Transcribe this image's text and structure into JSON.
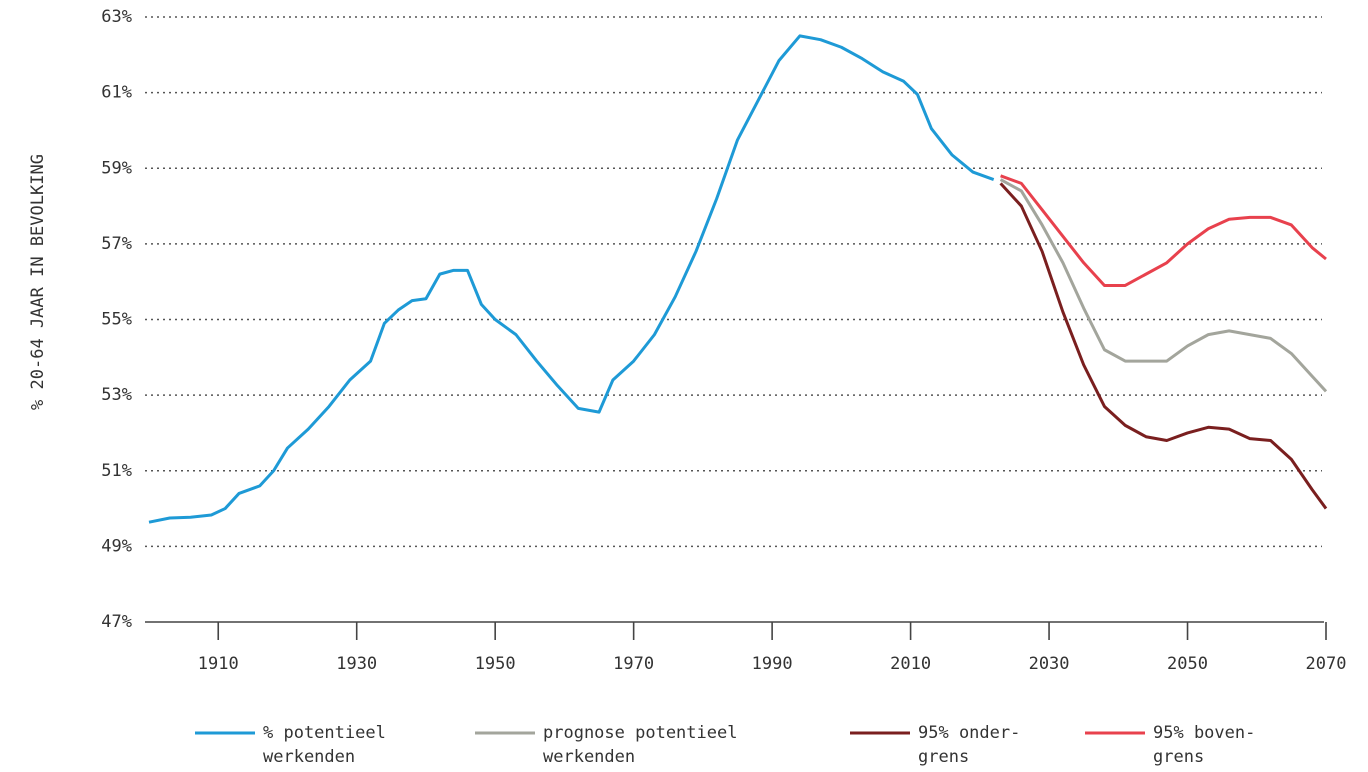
{
  "chart_data": {
    "type": "line",
    "y_label": "% 20-64 JAAR IN BEVOLKING",
    "xlim": [
      1900,
      2070
    ],
    "xticks": [
      1910,
      1930,
      1950,
      1970,
      1990,
      2010,
      2030,
      2050,
      2070
    ],
    "ylim": [
      47,
      63
    ],
    "yticks": [
      {
        "value": 47,
        "label": "47%"
      },
      {
        "value": 49,
        "label": "49%"
      },
      {
        "value": 51,
        "label": "51%"
      },
      {
        "value": 53,
        "label": "53%"
      },
      {
        "value": 55,
        "label": "55%"
      },
      {
        "value": 57,
        "label": "57%"
      },
      {
        "value": 59,
        "label": "59%"
      },
      {
        "value": 61,
        "label": "61%"
      },
      {
        "value": 63,
        "label": "63%"
      }
    ],
    "grid": true,
    "legend": "bottom",
    "series": [
      {
        "name": "% potentieel\nwerkenden",
        "color": "#1e9ad6",
        "x": [
          1900,
          1903,
          1906,
          1909,
          1911,
          1913,
          1916,
          1918,
          1920,
          1923,
          1926,
          1929,
          1932,
          1934,
          1936,
          1938,
          1940,
          1942,
          1944,
          1946,
          1948,
          1950,
          1953,
          1956,
          1959,
          1962,
          1965,
          1967,
          1970,
          1973,
          1976,
          1979,
          1982,
          1985,
          1988,
          1991,
          1994,
          1997,
          2000,
          2003,
          2006,
          2009,
          2011,
          2013,
          2016,
          2019,
          2022
        ],
        "values": [
          49.64,
          49.75,
          49.77,
          49.83,
          50.0,
          50.4,
          50.6,
          51.0,
          51.6,
          52.1,
          52.7,
          53.4,
          53.9,
          54.9,
          55.25,
          55.5,
          55.55,
          56.2,
          56.3,
          56.3,
          55.4,
          55.0,
          54.6,
          53.9,
          53.25,
          52.65,
          52.55,
          53.4,
          53.9,
          54.6,
          55.6,
          56.8,
          58.2,
          59.75,
          60.8,
          61.85,
          62.5,
          62.4,
          62.2,
          61.9,
          61.55,
          61.3,
          60.95,
          60.05,
          59.35,
          58.9,
          58.7
        ]
      },
      {
        "name": "prognose potentieel\nwerkenden",
        "color": "#a3a59c",
        "x": [
          2023,
          2026,
          2029,
          2032,
          2035,
          2038,
          2041,
          2044,
          2047,
          2050,
          2053,
          2056,
          2059,
          2062,
          2065,
          2068,
          2070
        ],
        "values": [
          58.7,
          58.4,
          57.5,
          56.5,
          55.3,
          54.2,
          53.9,
          53.9,
          53.9,
          54.3,
          54.6,
          54.7,
          54.6,
          54.5,
          54.1,
          53.5,
          53.1
        ]
      },
      {
        "name": "95% onder-\ngrens",
        "color": "#7a1f1f",
        "x": [
          2023,
          2026,
          2029,
          2032,
          2035,
          2038,
          2041,
          2044,
          2047,
          2050,
          2053,
          2056,
          2059,
          2062,
          2065,
          2068,
          2070
        ],
        "values": [
          58.6,
          58.0,
          56.8,
          55.2,
          53.8,
          52.7,
          52.2,
          51.9,
          51.8,
          52.0,
          52.15,
          52.1,
          51.85,
          51.8,
          51.3,
          50.5,
          50.0
        ]
      },
      {
        "name": "95% boven-\ngrens",
        "color": "#e8414d",
        "x": [
          2023,
          2026,
          2029,
          2032,
          2035,
          2038,
          2041,
          2044,
          2047,
          2050,
          2053,
          2056,
          2059,
          2062,
          2065,
          2068,
          2070
        ],
        "values": [
          58.8,
          58.6,
          57.9,
          57.2,
          56.5,
          55.9,
          55.9,
          56.2,
          56.5,
          57.0,
          57.4,
          57.65,
          57.7,
          57.7,
          57.5,
          56.9,
          56.6
        ]
      }
    ]
  }
}
